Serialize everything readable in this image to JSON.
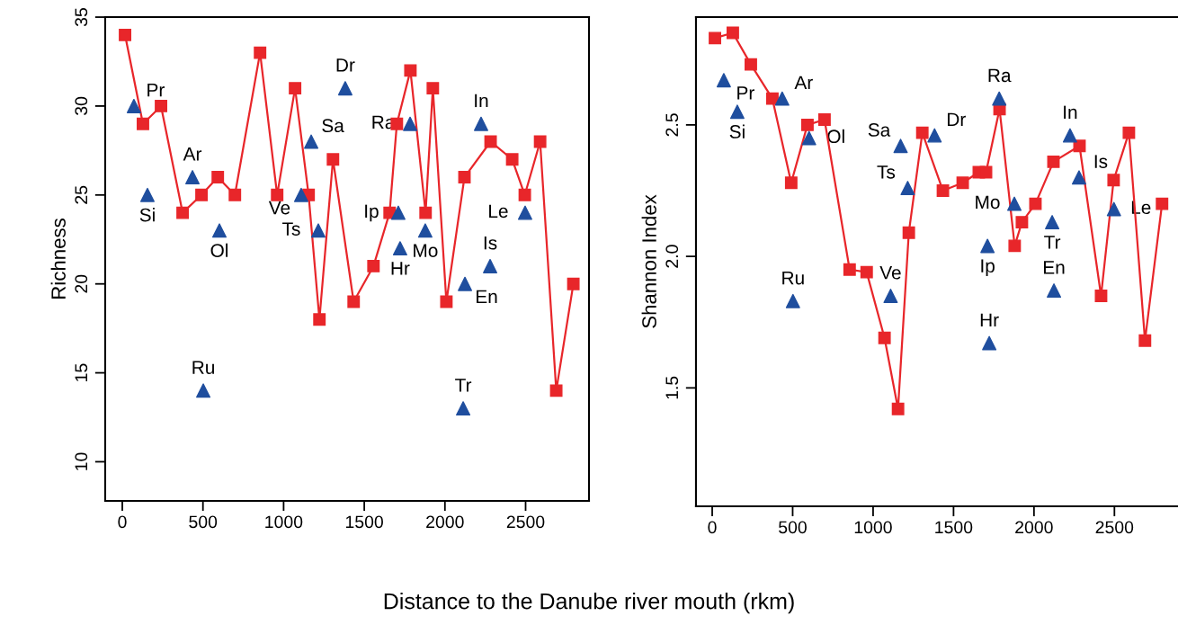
{
  "chart_data": [
    {
      "type": "line",
      "ylabel": "Richness",
      "xlabel": "Distance to the Danube river mouth (rkm)",
      "xlim": [
        -106,
        2893
      ],
      "ylim": [
        7.8,
        35.0
      ],
      "xticks": [
        0,
        500,
        1000,
        1500,
        2000,
        2500
      ],
      "yticks": [
        10,
        15,
        20,
        25,
        30,
        35
      ],
      "grid": false,
      "series": [
        {
          "color": "#e8262a",
          "marker": "square",
          "line_style": "solid",
          "x": [
            17,
            128,
            240,
            374,
            491,
            592,
            698,
            854,
            960,
            1071,
            1155,
            1222,
            1306,
            1434,
            1557,
            1657,
            1702,
            1786,
            1880,
            1925,
            2009,
            2121,
            2283,
            2417,
            2495,
            2590,
            2690,
            2796
          ],
          "values": [
            34,
            29,
            30,
            24,
            25,
            26,
            25,
            33,
            25,
            31,
            25,
            18,
            27,
            19,
            21,
            24,
            29,
            32,
            24,
            31,
            19,
            26,
            28,
            27,
            25,
            28,
            14,
            20
          ]
        },
        {
          "type": "scatter",
          "color": "#1f4e9e",
          "marker": "triangle",
          "x": [
            72,
            156,
            435,
            602,
            502,
            1109,
            1171,
            1215,
            1382,
            1711,
            1722,
            1784,
            1878,
            2224,
            2124,
            2280,
            2497,
            2113
          ],
          "values": [
            30,
            25,
            26,
            23,
            14,
            25,
            28,
            23,
            31,
            24,
            22,
            29,
            23,
            29,
            20,
            21,
            24,
            13
          ]
        }
      ],
      "annotations": [
        {
          "text": "Pr",
          "x": 72,
          "y": 30
        },
        {
          "text": "Si",
          "x": 156,
          "y": 25
        },
        {
          "text": "Ar",
          "x": 435,
          "y": 26
        },
        {
          "text": "Ol",
          "x": 602,
          "y": 23
        },
        {
          "text": "Ru",
          "x": 502,
          "y": 14
        },
        {
          "text": "Ve",
          "x": 1109,
          "y": 25
        },
        {
          "text": "Sa",
          "x": 1171,
          "y": 28
        },
        {
          "text": "Ts",
          "x": 1215,
          "y": 23
        },
        {
          "text": "Dr",
          "x": 1382,
          "y": 31
        },
        {
          "text": "Ip",
          "x": 1711,
          "y": 24
        },
        {
          "text": "Hr",
          "x": 1722,
          "y": 22
        },
        {
          "text": "Ra",
          "x": 1784,
          "y": 29
        },
        {
          "text": "Mo",
          "x": 1878,
          "y": 23
        },
        {
          "text": "In",
          "x": 2224,
          "y": 29
        },
        {
          "text": "En",
          "x": 2124,
          "y": 20
        },
        {
          "text": "Is",
          "x": 2280,
          "y": 21
        },
        {
          "text": "Le",
          "x": 2497,
          "y": 24
        },
        {
          "text": "Tr",
          "x": 2113,
          "y": 13
        }
      ]
    },
    {
      "type": "line",
      "ylabel": "Shannon Index",
      "xlim": [
        -101,
        2912
      ],
      "ylim": [
        1.05,
        2.91
      ],
      "xticks": [
        0,
        500,
        1000,
        1500,
        2000,
        2500
      ],
      "yticks": [
        1.5,
        {
          "value": 2.0,
          "label": "2.0"
        },
        2.5
      ],
      "grid": false,
      "series": [
        {
          "color": "#e8262a",
          "marker": "square",
          "line_style": "solid",
          "x": [
            17,
            128,
            240,
            374,
            491,
            592,
            698,
            854,
            960,
            1071,
            1155,
            1222,
            1306,
            1434,
            1557,
            1657,
            1702,
            1786,
            1880,
            1925,
            2009,
            2121,
            2283,
            2417,
            2495,
            2590,
            2690,
            2796
          ],
          "values": [
            2.83,
            2.85,
            2.73,
            2.6,
            2.28,
            2.5,
            2.52,
            1.95,
            1.94,
            1.69,
            1.42,
            2.09,
            2.47,
            2.25,
            2.28,
            2.32,
            2.32,
            2.56,
            2.04,
            2.13,
            2.2,
            2.36,
            2.42,
            1.85,
            2.29,
            2.47,
            1.68,
            2.2
          ]
        },
        {
          "type": "scatter",
          "color": "#1f4e9e",
          "marker": "triangle",
          "x": [
            72,
            156,
            435,
            602,
            502,
            1109,
            1171,
            1215,
            1382,
            1711,
            1722,
            1784,
            1878,
            2224,
            2124,
            2280,
            2497,
            2113
          ],
          "values": [
            2.67,
            2.55,
            2.6,
            2.45,
            1.83,
            1.85,
            2.42,
            2.26,
            2.46,
            2.04,
            1.67,
            2.6,
            2.2,
            2.46,
            1.87,
            2.3,
            2.18,
            2.13
          ]
        }
      ],
      "annotations": [
        {
          "text": "Pr",
          "x": 72,
          "y": 2.67
        },
        {
          "text": "Si",
          "x": 156,
          "y": 2.55
        },
        {
          "text": "Ar",
          "x": 435,
          "y": 2.6
        },
        {
          "text": "Ol",
          "x": 602,
          "y": 2.45
        },
        {
          "text": "Ru",
          "x": 502,
          "y": 1.83
        },
        {
          "text": "Ve",
          "x": 1109,
          "y": 1.85
        },
        {
          "text": "Sa",
          "x": 1171,
          "y": 2.42
        },
        {
          "text": "Ts",
          "x": 1215,
          "y": 2.26
        },
        {
          "text": "Dr",
          "x": 1382,
          "y": 2.46
        },
        {
          "text": "Ip",
          "x": 1711,
          "y": 2.04
        },
        {
          "text": "Hr",
          "x": 1722,
          "y": 1.67
        },
        {
          "text": "Ra",
          "x": 1784,
          "y": 2.6
        },
        {
          "text": "Mo",
          "x": 1878,
          "y": 2.2
        },
        {
          "text": "In",
          "x": 2224,
          "y": 2.46
        },
        {
          "text": "En",
          "x": 2124,
          "y": 1.87
        },
        {
          "text": "Is",
          "x": 2280,
          "y": 2.3
        },
        {
          "text": "Le",
          "x": 2497,
          "y": 2.18
        },
        {
          "text": "Tr",
          "x": 2113,
          "y": 2.13
        }
      ]
    }
  ]
}
